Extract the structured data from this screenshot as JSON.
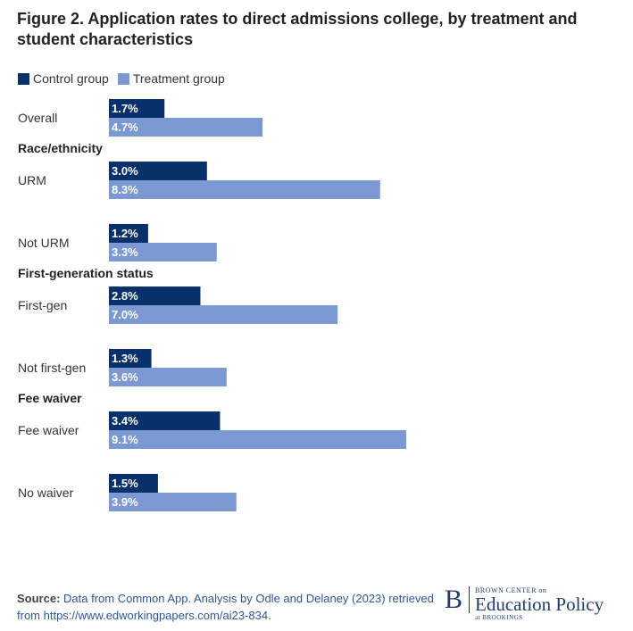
{
  "colors": {
    "control": "#08306b",
    "treatment": "#7b98d2",
    "text": "#222222"
  },
  "figure": {
    "title": "Figure 2. Application rates to direct admissions college, by treatment and student characteristics"
  },
  "legend": [
    {
      "label": "Control group",
      "color": "#08306b"
    },
    {
      "label": "Treatment group",
      "color": "#7b98d2"
    }
  ],
  "chart_data": {
    "type": "bar",
    "orientation": "horizontal",
    "title": "Figure 2. Application rates to direct admissions college, by treatment and student characteristics",
    "xlabel": "",
    "ylabel": "",
    "unit": "%",
    "grid": false,
    "legend_placement": "top-left",
    "groups": [
      {
        "heading": "",
        "categories": [
          {
            "label": "Overall",
            "control": 1.7,
            "treatment": 4.7
          }
        ]
      },
      {
        "heading": "Race/ethnicity",
        "categories": [
          {
            "label": "URM",
            "control": 3.0,
            "treatment": 8.3
          },
          {
            "label": "Not URM",
            "control": 1.2,
            "treatment": 3.3
          }
        ]
      },
      {
        "heading": "First-generation status",
        "categories": [
          {
            "label": "First-gen",
            "control": 2.8,
            "treatment": 7.0
          },
          {
            "label": "Not first-gen",
            "control": 1.3,
            "treatment": 3.6
          }
        ]
      },
      {
        "heading": "Fee waiver",
        "categories": [
          {
            "label": "Fee waiver",
            "control": 3.4,
            "treatment": 9.1
          },
          {
            "label": "No waiver",
            "control": 1.5,
            "treatment": 3.9
          }
        ]
      }
    ],
    "series": [
      {
        "name": "Control group",
        "key": "control"
      },
      {
        "name": "Treatment group",
        "key": "treatment"
      }
    ]
  },
  "source": {
    "label": "Source:",
    "text": "Data from Common App. Analysis by Odle and Delaney (2023) retrieved from https://www.edworkingpapers.com/ai23-834",
    "end": "."
  },
  "logo": {
    "mark": "B",
    "top": "BROWN CENTER on",
    "main": "Education Policy",
    "bottom": "at BROOKINGS"
  }
}
